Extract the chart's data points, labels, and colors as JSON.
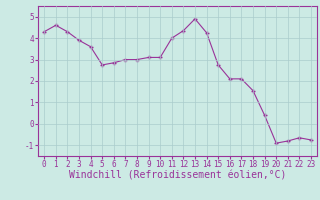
{
  "x": [
    0,
    1,
    2,
    3,
    4,
    5,
    6,
    7,
    8,
    9,
    10,
    11,
    12,
    13,
    14,
    15,
    16,
    17,
    18,
    19,
    20,
    21,
    22,
    23
  ],
  "y": [
    4.3,
    4.6,
    4.3,
    3.9,
    3.6,
    2.75,
    2.85,
    3.0,
    3.0,
    3.1,
    3.1,
    4.0,
    4.35,
    4.9,
    4.25,
    2.75,
    2.1,
    2.1,
    1.55,
    0.4,
    -0.9,
    -0.8,
    -0.65,
    -0.75
  ],
  "line_color": "#993399",
  "marker": "+",
  "marker_size": 3,
  "bg_color": "#cceae4",
  "grid_color": "#aacccc",
  "xlabel": "Windchill (Refroidissement éolien,°C)",
  "ylim": [
    -1.5,
    5.5
  ],
  "yticks": [
    -1,
    0,
    1,
    2,
    3,
    4,
    5
  ],
  "xticks": [
    0,
    1,
    2,
    3,
    4,
    5,
    6,
    7,
    8,
    9,
    10,
    11,
    12,
    13,
    14,
    15,
    16,
    17,
    18,
    19,
    20,
    21,
    22,
    23
  ],
  "xlabel_fontsize": 7,
  "tick_fontsize": 5.5,
  "line_width": 0.8
}
